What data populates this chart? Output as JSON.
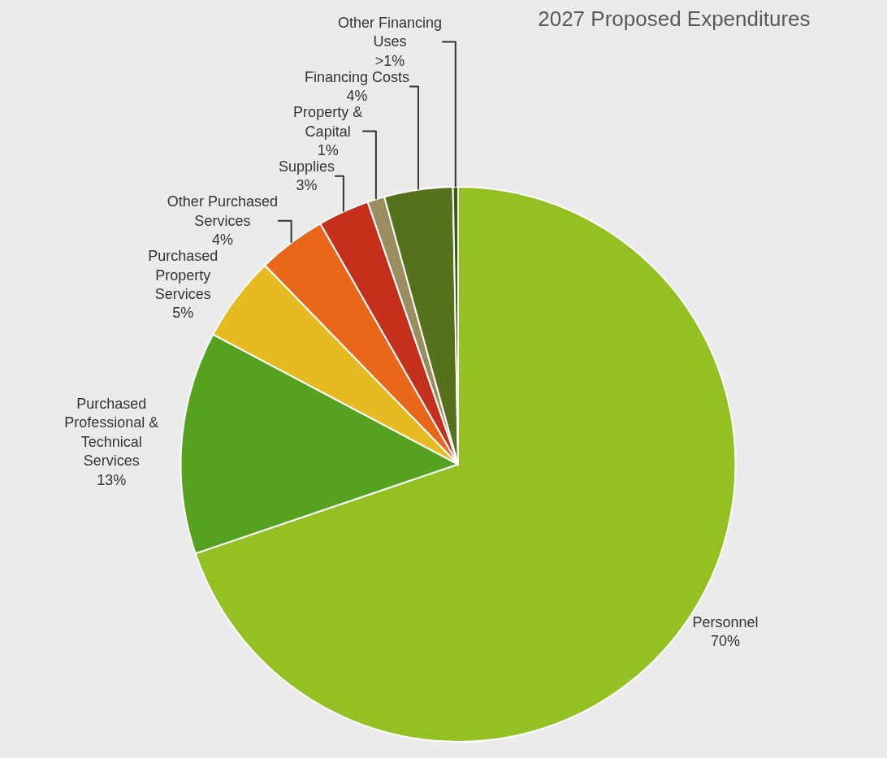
{
  "chart_data": {
    "type": "pie",
    "title": "2027 Proposed Expenditures",
    "categories": [
      "Personnel",
      "Purchased Professional & Technical Services",
      "Purchased Property Services",
      "Other Purchased Services",
      "Supplies",
      "Property & Capital",
      "Financing Costs",
      "Other Financing Uses"
    ],
    "values": [
      70,
      13,
      5,
      4,
      3,
      1,
      4,
      0.3
    ],
    "value_labels": [
      "70%",
      "13%",
      "5%",
      "4%",
      "3%",
      "1%",
      "4%",
      ">1%"
    ],
    "colors": [
      "#93c023",
      "#55a221",
      "#e6bb21",
      "#e8671a",
      "#c5301c",
      "#9b8d5f",
      "#55711b",
      "#3d5a12"
    ],
    "legend": false
  }
}
